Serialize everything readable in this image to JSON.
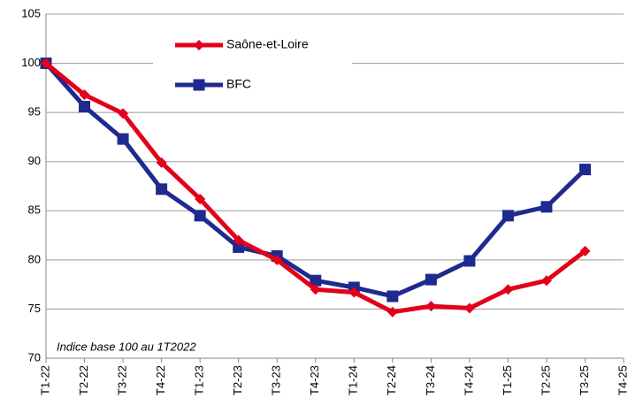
{
  "chart_data": {
    "type": "line",
    "categories": [
      "T1-22",
      "T2-22",
      "T3-22",
      "T4-22",
      "T1-23",
      "T2-23",
      "T3-23",
      "T4-23",
      "T1-24",
      "T2-24",
      "T3-24",
      "T4-24",
      "T1-25",
      "T2-25",
      "T3-25",
      "T4-25"
    ],
    "series": [
      {
        "name": "Saône-et-Loire",
        "color": "#e2001a",
        "marker": "diamond",
        "values": [
          100,
          96.8,
          94.9,
          89.9,
          86.2,
          82.0,
          80.0,
          77.0,
          76.7,
          74.7,
          75.3,
          75.1,
          77.0,
          77.9,
          80.9,
          null
        ]
      },
      {
        "name": "BFC",
        "color": "#1e2a8e",
        "marker": "square",
        "values": [
          100,
          95.6,
          92.3,
          87.2,
          84.5,
          81.3,
          80.4,
          77.9,
          77.2,
          76.3,
          78.0,
          79.9,
          84.5,
          85.4,
          89.2,
          null
        ]
      }
    ],
    "ylim": [
      70,
      105
    ],
    "yticks": [
      70,
      75,
      80,
      85,
      90,
      95,
      100,
      105
    ],
    "grid": true,
    "annotation": "Indice base 100 au 1T2022"
  }
}
